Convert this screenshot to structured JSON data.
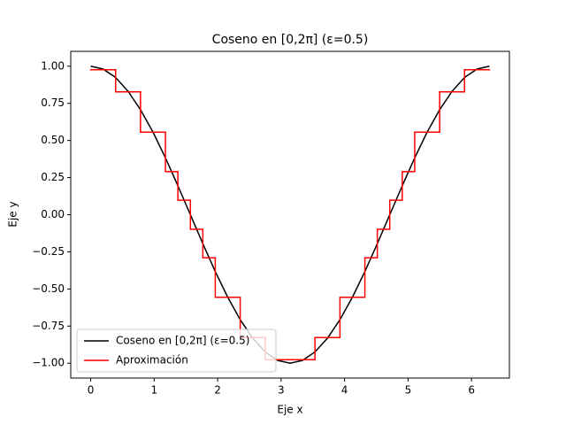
{
  "chart_data": {
    "type": "line",
    "title": "Coseno en [0,2π] (ε=0.5)",
    "x_label": "Eje x",
    "y_label": "Eje y",
    "xlim": [
      -0.314,
      6.597
    ],
    "ylim": [
      -1.1,
      1.1
    ],
    "xticks": [
      0,
      1,
      2,
      3,
      4,
      5,
      6
    ],
    "yticks": [
      {
        "value": -1,
        "label": "−1.00"
      },
      {
        "value": -0.75,
        "label": "−0.75"
      },
      {
        "value": -0.5,
        "label": "−0.50"
      },
      {
        "value": -0.25,
        "label": "−0.25"
      },
      {
        "value": 0,
        "label": "0.00"
      },
      {
        "value": 0.25,
        "label": "0.25"
      },
      {
        "value": 0.5,
        "label": "0.50"
      },
      {
        "value": 0.75,
        "label": "0.75"
      },
      {
        "value": 1,
        "label": "1.00"
      }
    ],
    "legend": "lower left",
    "series": [
      {
        "name": "Coseno en [0,2π] (ε=0.5)",
        "color": "#000000",
        "x": [
          0,
          0.196,
          0.393,
          0.589,
          0.785,
          0.982,
          1.178,
          1.374,
          1.571,
          1.767,
          1.963,
          2.16,
          2.356,
          2.553,
          2.749,
          2.945,
          3.142,
          3.338,
          3.534,
          3.731,
          3.927,
          4.123,
          4.32,
          4.516,
          4.712,
          4.909,
          5.105,
          5.301,
          5.498,
          5.694,
          5.89,
          6.087,
          6.283
        ],
        "values": [
          1,
          0.981,
          0.924,
          0.831,
          0.707,
          0.556,
          0.383,
          0.195,
          0,
          -0.195,
          -0.383,
          -0.556,
          -0.707,
          -0.831,
          -0.924,
          -0.981,
          -1,
          -0.981,
          -0.924,
          -0.831,
          -0.707,
          -0.556,
          -0.383,
          -0.195,
          0,
          0.195,
          0.383,
          0.556,
          0.707,
          0.831,
          0.924,
          0.981,
          1
        ]
      },
      {
        "name": "Aproximación",
        "color": "#ff0000",
        "drawstyle": "steps",
        "bins": [
          0,
          0.393,
          0.785,
          1.178,
          1.374,
          1.571,
          1.767,
          1.963,
          2.356,
          2.749,
          3.534,
          3.927,
          4.32,
          4.516,
          4.712,
          4.909,
          5.105,
          5.498,
          5.89,
          6.283
        ],
        "values": [
          0.976,
          0.827,
          0.556,
          0.29,
          0.098,
          -0.098,
          -0.29,
          -0.556,
          -0.827,
          -0.976,
          -0.827,
          -0.556,
          -0.29,
          -0.098,
          0.098,
          0.29,
          0.556,
          0.827,
          0.976
        ]
      }
    ]
  }
}
